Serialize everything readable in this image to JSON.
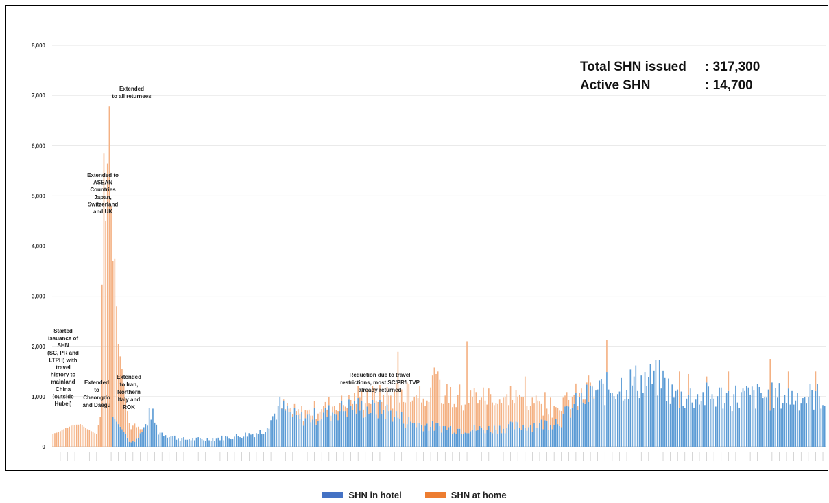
{
  "summary": {
    "total_label": "Total SHN issued",
    "total_value": ": 317,300",
    "active_label": "Active SHN",
    "active_value": ": 14,700"
  },
  "legend": {
    "hotel_label": "SHN in hotel",
    "home_label": "SHN at home"
  },
  "colors": {
    "hotel": "#5b9bd5",
    "home": "#f4b183",
    "hotel_legend": "#4472c4",
    "home_legend": "#ed7d31"
  },
  "chart_data": {
    "type": "bar",
    "stacked": true,
    "title": "",
    "xlabel": "",
    "ylabel": "",
    "ylim": [
      0,
      8000
    ],
    "yticks": [
      "0",
      "1,000",
      "2,000",
      "3,000",
      "4,000",
      "5,000",
      "6,000",
      "7,000",
      "8,000"
    ],
    "grid": true,
    "legend_position": "bottom",
    "x_tick_labels_note": "daily dates (illegible)",
    "anchors": [
      [
        0,
        0,
        250
      ],
      [
        5,
        0,
        330
      ],
      [
        10,
        0,
        420
      ],
      [
        15,
        0,
        450
      ],
      [
        20,
        0,
        330
      ],
      [
        24,
        0,
        250
      ],
      [
        26,
        0,
        600
      ],
      [
        28,
        0,
        5850
      ],
      [
        29,
        0,
        4500
      ],
      [
        31,
        0,
        6780
      ],
      [
        32,
        0,
        4800
      ],
      [
        33,
        600,
        3100
      ],
      [
        34,
        550,
        3200
      ],
      [
        35,
        500,
        2300
      ],
      [
        36,
        450,
        1600
      ],
      [
        38,
        350,
        1200
      ],
      [
        40,
        250,
        700
      ],
      [
        42,
        100,
        350
      ],
      [
        46,
        150,
        250
      ],
      [
        50,
        350,
        0
      ],
      [
        54,
        700,
        0
      ],
      [
        58,
        300,
        0
      ],
      [
        70,
        150,
        0
      ],
      [
        85,
        150,
        0
      ],
      [
        100,
        200,
        0
      ],
      [
        115,
        300,
        0
      ],
      [
        125,
        800,
        0
      ],
      [
        135,
        550,
        100
      ],
      [
        150,
        650,
        150
      ],
      [
        165,
        800,
        150
      ],
      [
        175,
        750,
        250
      ],
      [
        185,
        700,
        300
      ],
      [
        195,
        500,
        600
      ],
      [
        210,
        400,
        700
      ],
      [
        225,
        350,
        650
      ],
      [
        240,
        350,
        650
      ],
      [
        255,
        400,
        550
      ],
      [
        270,
        450,
        450
      ],
      [
        280,
        550,
        300
      ],
      [
        285,
        750,
        200
      ],
      [
        290,
        900,
        100
      ],
      [
        300,
        1100,
        0
      ],
      [
        320,
        1300,
        0
      ],
      [
        335,
        1350,
        0
      ],
      [
        342,
        1000,
        0
      ]
    ],
    "spikes": [
      [
        190,
        1890
      ],
      [
        210,
        1580
      ],
      [
        212,
        1500
      ],
      [
        228,
        2100
      ],
      [
        260,
        1400
      ],
      [
        295,
        1420
      ],
      [
        305,
        2120
      ],
      [
        318,
        1200
      ],
      [
        345,
        1500
      ],
      [
        350,
        1450
      ],
      [
        360,
        1400
      ],
      [
        372,
        1500
      ],
      [
        395,
        1750
      ],
      [
        405,
        1500
      ],
      [
        420,
        1500
      ]
    ],
    "categories_count": 426,
    "annotations": [
      {
        "text": "Started issuance of SHN (SC, PR and LTPH) with travel history to mainland China (outside Hubei)",
        "lines": [
          "Started",
          "issuance of",
          "SHN",
          "(SC, PR and",
          "LTPH) with",
          "travel",
          "history to",
          "mainland",
          "China",
          "(outside",
          "Hubei)"
        ]
      },
      {
        "text": "Extended to Cheongdo and Daegu",
        "lines": [
          "Extended",
          "to",
          "Cheongdo",
          "and Daegu"
        ]
      },
      {
        "text": "Extended to ASEAN Countries Japan, Switzerland and UK",
        "lines": [
          "Extended to",
          "ASEAN",
          "Countries",
          "Japan,",
          "Switzerland",
          "and UK"
        ]
      },
      {
        "text": "Extended to all returnees",
        "lines": [
          "Extended",
          "to all returnees"
        ]
      },
      {
        "text": "Extended to Iran, Northern Italy and ROK",
        "lines": [
          "Extended",
          "to Iran,",
          "Northern",
          "Italy and",
          "ROK"
        ]
      },
      {
        "text": "Reduction due to travel restrictions, most SC/PR/LTVP already returned",
        "lines": [
          "Reduction due to travel",
          "restrictions, most SC/PR/LTVP",
          "already returned"
        ]
      }
    ]
  }
}
